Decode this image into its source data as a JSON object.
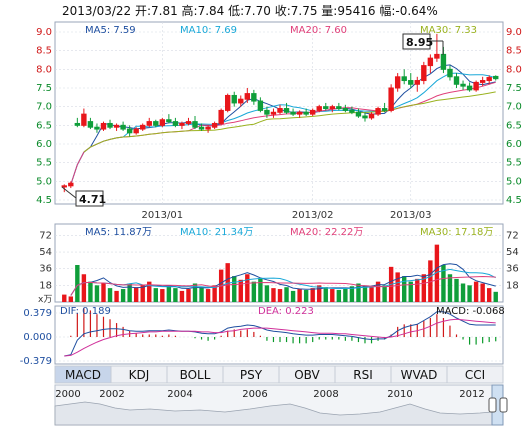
{
  "header": {
    "date": "2013/03/22",
    "text": "2013/03/22 开:7.81 高:7.84 低:7.70 收:7.75 量:95416 幅:-0.64%"
  },
  "price_panel": {
    "ma_legend": [
      {
        "label": "MA5: 7.59",
        "color": "#1f4fa0"
      },
      {
        "label": "MA10: 7.69",
        "color": "#19a8d8"
      },
      {
        "label": "MA20: 7.60",
        "color": "#e0407a"
      },
      {
        "label": "MA30: 7.33",
        "color": "#9ab21f"
      }
    ],
    "y_ticks": [
      "9.0",
      "8.5",
      "8.0",
      "7.5",
      "7.0",
      "6.5",
      "6.0",
      "5.5",
      "5.0",
      "4.5"
    ],
    "x_ticks": [
      "2013/01",
      "2013/02",
      "2013/03"
    ],
    "annotations": {
      "high": "8.95",
      "low": "4.71"
    },
    "up_color": "#e8161b",
    "down_color": "#0f9e3a"
  },
  "volume_panel": {
    "ma_legend": [
      {
        "label": "MA5: 11.87万",
        "color": "#1f4fa0"
      },
      {
        "label": "MA10: 21.34万",
        "color": "#19a8d8"
      },
      {
        "label": "MA20: 22.22万",
        "color": "#e0407a"
      },
      {
        "label": "MA30: 17.18万",
        "color": "#9ab21f"
      }
    ],
    "y_ticks": [
      "72",
      "54",
      "36",
      "18"
    ],
    "unit": "x万"
  },
  "macd_panel": {
    "legend": [
      {
        "label": "DIF: 0.189",
        "color": "#1f4fa0"
      },
      {
        "label": "DEA: 0.223",
        "color": "#d0309a"
      },
      {
        "label": "MACD: -0.068",
        "color": "#111111"
      }
    ],
    "y_ticks": [
      "0.379",
      "0.000",
      "-0.379"
    ]
  },
  "tabs": [
    {
      "label": "MACD",
      "active": true
    },
    {
      "label": "KDJ",
      "active": false
    },
    {
      "label": "BOLL",
      "active": false
    },
    {
      "label": "PSY",
      "active": false
    },
    {
      "label": "OBV",
      "active": false
    },
    {
      "label": "RSI",
      "active": false
    },
    {
      "label": "WVAD",
      "active": false
    },
    {
      "label": "CCI",
      "active": false
    }
  ],
  "timeline": {
    "years": [
      "2000",
      "2002",
      "2004",
      "2006",
      "2008",
      "2010",
      "2012"
    ]
  },
  "chart_data": {
    "type": "candlestick",
    "ylim": [
      4.5,
      9.0
    ],
    "candles": [
      [
        4.85,
        4.92,
        4.71,
        4.88
      ],
      [
        4.88,
        5.0,
        4.82,
        4.95
      ],
      [
        6.55,
        6.7,
        6.45,
        6.5
      ],
      [
        6.5,
        6.95,
        6.45,
        6.8
      ],
      [
        6.6,
        6.7,
        6.4,
        6.45
      ],
      [
        6.45,
        6.55,
        6.3,
        6.4
      ],
      [
        6.4,
        6.6,
        6.35,
        6.55
      ],
      [
        6.55,
        6.65,
        6.4,
        6.45
      ],
      [
        6.45,
        6.55,
        6.35,
        6.5
      ],
      [
        6.5,
        6.6,
        6.35,
        6.4
      ],
      [
        6.4,
        6.5,
        6.2,
        6.3
      ],
      [
        6.3,
        6.45,
        6.25,
        6.4
      ],
      [
        6.4,
        6.55,
        6.35,
        6.5
      ],
      [
        6.5,
        6.7,
        6.45,
        6.6
      ],
      [
        6.6,
        6.65,
        6.45,
        6.5
      ],
      [
        6.5,
        6.7,
        6.45,
        6.65
      ],
      [
        6.65,
        6.8,
        6.55,
        6.6
      ],
      [
        6.6,
        6.7,
        6.45,
        6.5
      ],
      [
        6.5,
        6.6,
        6.4,
        6.55
      ],
      [
        6.55,
        6.7,
        6.5,
        6.6
      ],
      [
        6.6,
        6.75,
        6.4,
        6.45
      ],
      [
        6.45,
        6.55,
        6.35,
        6.4
      ],
      [
        6.4,
        6.5,
        6.3,
        6.45
      ],
      [
        6.45,
        6.6,
        6.4,
        6.55
      ],
      [
        6.55,
        6.95,
        6.5,
        6.9
      ],
      [
        6.9,
        7.35,
        6.85,
        7.3
      ],
      [
        7.3,
        7.4,
        7.0,
        7.1
      ],
      [
        7.1,
        7.3,
        7.0,
        7.2
      ],
      [
        7.2,
        7.5,
        7.1,
        7.35
      ],
      [
        7.35,
        7.45,
        7.05,
        7.15
      ],
      [
        7.15,
        7.25,
        6.85,
        6.9
      ],
      [
        6.9,
        7.0,
        6.7,
        6.8
      ],
      [
        6.8,
        6.95,
        6.7,
        6.85
      ],
      [
        6.85,
        7.05,
        6.8,
        6.95
      ],
      [
        6.95,
        7.1,
        6.8,
        6.85
      ],
      [
        6.85,
        6.95,
        6.75,
        6.8
      ],
      [
        6.8,
        6.9,
        6.7,
        6.85
      ],
      [
        6.85,
        6.95,
        6.75,
        6.8
      ],
      [
        6.8,
        6.95,
        6.75,
        6.9
      ],
      [
        6.9,
        7.05,
        6.85,
        7.0
      ],
      [
        7.0,
        7.1,
        6.9,
        6.95
      ],
      [
        6.95,
        7.05,
        6.85,
        7.0
      ],
      [
        7.0,
        7.1,
        6.9,
        6.95
      ],
      [
        6.95,
        7.05,
        6.85,
        6.9
      ],
      [
        6.9,
        7.0,
        6.8,
        6.85
      ],
      [
        6.85,
        6.95,
        6.7,
        6.75
      ],
      [
        6.75,
        6.85,
        6.6,
        6.7
      ],
      [
        6.7,
        6.85,
        6.65,
        6.8
      ],
      [
        6.8,
        7.0,
        6.75,
        6.95
      ],
      [
        6.95,
        7.1,
        6.85,
        6.9
      ],
      [
        6.9,
        7.6,
        6.85,
        7.5
      ],
      [
        7.5,
        7.9,
        7.4,
        7.8
      ],
      [
        7.8,
        8.0,
        7.6,
        7.7
      ],
      [
        7.7,
        7.9,
        7.5,
        7.6
      ],
      [
        7.6,
        7.8,
        7.4,
        7.7
      ],
      [
        7.7,
        8.2,
        7.6,
        8.1
      ],
      [
        8.1,
        8.4,
        7.9,
        8.3
      ],
      [
        8.3,
        8.95,
        8.2,
        8.4
      ],
      [
        8.4,
        8.6,
        7.9,
        8.0
      ],
      [
        8.0,
        8.1,
        7.7,
        7.8
      ],
      [
        7.8,
        7.9,
        7.5,
        7.6
      ],
      [
        7.6,
        7.7,
        7.45,
        7.55
      ],
      [
        7.55,
        7.65,
        7.4,
        7.45
      ],
      [
        7.45,
        7.7,
        7.4,
        7.65
      ],
      [
        7.65,
        7.8,
        7.55,
        7.7
      ],
      [
        7.7,
        7.84,
        7.6,
        7.78
      ],
      [
        7.81,
        7.84,
        7.7,
        7.75
      ]
    ],
    "volume": [
      8,
      6,
      40,
      30,
      22,
      18,
      20,
      15,
      12,
      14,
      20,
      16,
      18,
      22,
      15,
      14,
      18,
      15,
      12,
      14,
      20,
      16,
      14,
      18,
      35,
      42,
      28,
      24,
      30,
      22,
      26,
      18,
      15,
      14,
      16,
      12,
      14,
      13,
      15,
      18,
      16,
      14,
      13,
      15,
      17,
      20,
      18,
      16,
      22,
      18,
      38,
      32,
      28,
      22,
      25,
      30,
      45,
      62,
      40,
      30,
      25,
      20,
      18,
      22,
      20,
      15,
      11
    ],
    "dif": [
      -0.3,
      -0.28,
      -0.05,
      0.05,
      0.08,
      0.1,
      0.12,
      0.13,
      0.13,
      0.12,
      0.1,
      0.09,
      0.09,
      0.1,
      0.1,
      0.1,
      0.11,
      0.1,
      0.09,
      0.09,
      0.08,
      0.06,
      0.05,
      0.05,
      0.08,
      0.14,
      0.16,
      0.17,
      0.19,
      0.18,
      0.15,
      0.11,
      0.09,
      0.08,
      0.07,
      0.05,
      0.04,
      0.03,
      0.03,
      0.04,
      0.04,
      0.04,
      0.03,
      0.02,
      0.01,
      -0.01,
      -0.03,
      -0.04,
      -0.03,
      -0.03,
      0.02,
      0.1,
      0.15,
      0.18,
      0.2,
      0.26,
      0.32,
      0.4,
      0.4,
      0.36,
      0.3,
      0.25,
      0.2,
      0.19,
      0.19,
      0.19,
      0.189
    ],
    "dea": [
      -0.3,
      -0.29,
      -0.24,
      -0.18,
      -0.13,
      -0.08,
      -0.04,
      -0.01,
      0.02,
      0.04,
      0.05,
      0.06,
      0.07,
      0.08,
      0.08,
      0.09,
      0.09,
      0.09,
      0.09,
      0.09,
      0.09,
      0.08,
      0.08,
      0.07,
      0.07,
      0.09,
      0.1,
      0.12,
      0.13,
      0.14,
      0.14,
      0.14,
      0.13,
      0.12,
      0.11,
      0.1,
      0.09,
      0.08,
      0.07,
      0.06,
      0.06,
      0.06,
      0.05,
      0.05,
      0.04,
      0.03,
      0.02,
      0.01,
      0.0,
      -0.01,
      0.0,
      0.02,
      0.05,
      0.08,
      0.1,
      0.13,
      0.17,
      0.22,
      0.25,
      0.27,
      0.28,
      0.27,
      0.26,
      0.25,
      0.24,
      0.23,
      0.223
    ]
  }
}
